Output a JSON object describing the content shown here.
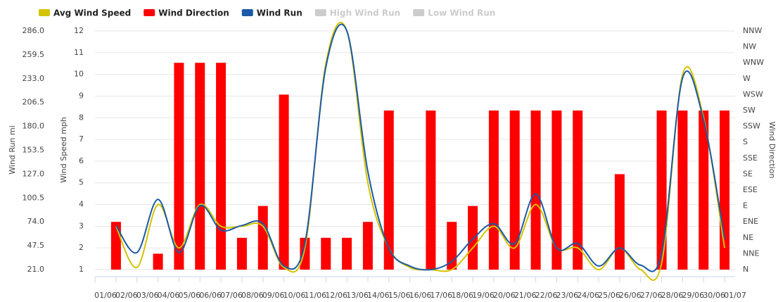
{
  "chart_data": {
    "type": "combo",
    "xticks": [
      "01/06",
      "02/06",
      "03/06",
      "04/06",
      "05/06",
      "06/06",
      "07/06",
      "08/06",
      "09/06",
      "10/06",
      "11/06",
      "12/06",
      "13/06",
      "14/06",
      "15/06",
      "16/06",
      "17/06",
      "18/06",
      "19/06",
      "20/06",
      "21/06",
      "22/06",
      "23/06",
      "24/06",
      "25/06",
      "26/06",
      "27/06",
      "28/06",
      "29/06",
      "30/06",
      "01/07"
    ],
    "x": [
      "01/06",
      "02/06",
      "03/06",
      "04/06",
      "05/06",
      "06/06",
      "07/06",
      "08/06",
      "09/06",
      "10/06",
      "11/06",
      "12/06",
      "13/06",
      "14/06",
      "15/06",
      "16/06",
      "17/06",
      "18/06",
      "19/06",
      "20/06",
      "21/06",
      "22/06",
      "23/06",
      "24/06",
      "25/06",
      "26/06",
      "27/06",
      "28/06",
      "29/06",
      "30/06"
    ],
    "ylabel": "Wind Run mi",
    "ylim": [
      21,
      286
    ],
    "yticks": [
      {
        "value": 21,
        "label": "21.0"
      },
      47.5,
      {
        "value": 74,
        "label": "74.0"
      },
      100.5,
      {
        "value": 127,
        "label": "127.0"
      },
      153.5,
      {
        "value": 180,
        "label": "180.0"
      },
      206.5,
      {
        "value": 233,
        "label": "233.0"
      },
      259.5,
      {
        "value": 286,
        "label": "286.0"
      }
    ],
    "y2label": "Wind Speed mph",
    "y2lim": [
      1,
      12
    ],
    "y2ticks": [
      1,
      2,
      3,
      4,
      5,
      6,
      7,
      8,
      9,
      10,
      11,
      12
    ],
    "y3label": "Wind Direction",
    "y3lim": [
      0,
      337.5
    ],
    "y3ticks": [
      {
        "value": 0,
        "label": "N"
      },
      {
        "value": 22.5,
        "label": "NNE"
      },
      {
        "value": 45,
        "label": "NE"
      },
      {
        "value": 67.5,
        "label": "ENE"
      },
      {
        "value": 90,
        "label": "E"
      },
      {
        "value": 112.5,
        "label": "ESE"
      },
      {
        "value": 135,
        "label": "SE"
      },
      {
        "value": 157.5,
        "label": "SSE"
      },
      {
        "value": 180,
        "label": "S"
      },
      {
        "value": 202.5,
        "label": "SSW"
      },
      {
        "value": 225,
        "label": "SW"
      },
      {
        "value": 247.5,
        "label": "WSW"
      },
      {
        "value": 270,
        "label": "W"
      },
      {
        "value": 292.5,
        "label": "WNW"
      },
      {
        "value": 315,
        "label": "NW"
      },
      {
        "value": 337.5,
        "label": "NNW"
      }
    ],
    "grid": true,
    "legend": "top",
    "series": [
      {
        "name": "Avg Wind Speed",
        "kind": "line",
        "axis": "y2",
        "color": "#d4c300",
        "values": [
          3,
          1.1,
          4,
          2,
          4,
          3,
          3,
          3,
          1.1,
          2,
          10.5,
          12,
          5,
          2,
          1.1,
          1,
          1,
          2,
          3,
          2,
          4,
          2,
          2,
          1,
          2,
          1,
          1.3,
          10,
          8,
          2
        ]
      },
      {
        "name": "Wind Direction",
        "kind": "bar",
        "axis": "y3",
        "color": "#ff0000",
        "values": [
          67.5,
          null,
          22.5,
          292.5,
          292.5,
          292.5,
          45,
          90,
          247.5,
          45,
          45,
          45,
          67.5,
          225,
          null,
          225,
          67.5,
          90,
          225,
          225,
          225,
          225,
          225,
          null,
          135,
          null,
          225,
          225,
          225,
          225
        ]
      },
      {
        "name": "Wind Run",
        "kind": "line",
        "axis": "y",
        "color": "#1a5aa6",
        "values": [
          70,
          40,
          99,
          40,
          92,
          65,
          70,
          72,
          25,
          50,
          246,
          286,
          130,
          45,
          25,
          21,
          30,
          55,
          72,
          50,
          105,
          45,
          50,
          25,
          45,
          26,
          39,
          234,
          187,
          55
        ]
      },
      {
        "name": "High Wind Run",
        "kind": "line",
        "axis": "y",
        "color": "#cccccc",
        "visible": false
      },
      {
        "name": "Low Wind Run",
        "kind": "line",
        "axis": "y",
        "color": "#cccccc",
        "visible": false
      }
    ]
  }
}
